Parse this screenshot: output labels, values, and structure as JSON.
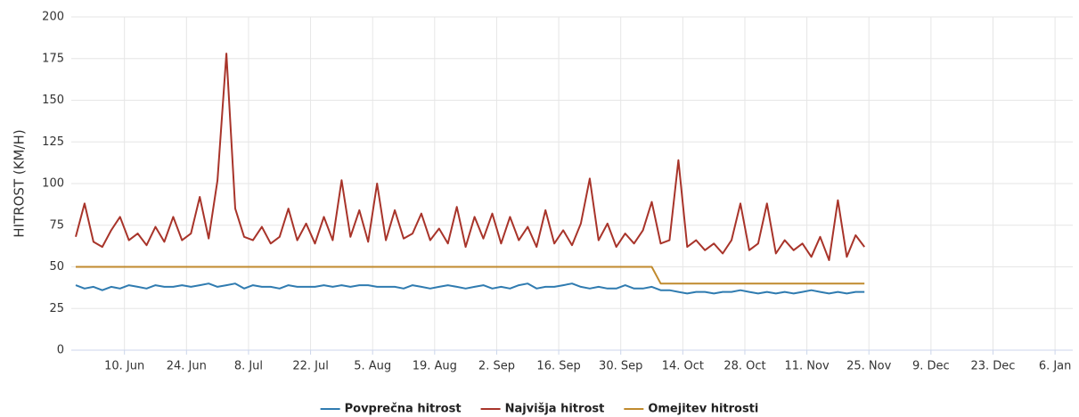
{
  "chart_data": {
    "type": "line",
    "y_label": "HITROST (KM/H)",
    "x": [
      "30. May",
      "1. Jun",
      "3. Jun",
      "5. Jun",
      "7. Jun",
      "9. Jun",
      "11. Jun",
      "13. Jun",
      "15. Jun",
      "17. Jun",
      "19. Jun",
      "21. Jun",
      "23. Jun",
      "25. Jun",
      "27. Jun",
      "29. Jun",
      "1. Jul",
      "3. Jul",
      "5. Jul",
      "7. Jul",
      "9. Jul",
      "11. Jul",
      "13. Jul",
      "15. Jul",
      "17. Jul",
      "19. Jul",
      "21. Jul",
      "23. Jul",
      "25. Jul",
      "27. Jul",
      "29. Jul",
      "31. Jul",
      "2. Aug",
      "4. Aug",
      "6. Aug",
      "8. Aug",
      "10. Aug",
      "12. Aug",
      "14. Aug",
      "16. Aug",
      "18. Aug",
      "20. Aug",
      "22. Aug",
      "24. Aug",
      "26. Aug",
      "28. Aug",
      "30. Aug",
      "1. Sep",
      "3. Sep",
      "5. Sep",
      "7. Sep",
      "9. Sep",
      "11. Sep",
      "13. Sep",
      "15. Sep",
      "17. Sep",
      "19. Sep",
      "21. Sep",
      "23. Sep",
      "25. Sep",
      "27. Sep",
      "29. Sep",
      "1. Oct",
      "3. Oct",
      "5. Oct",
      "7. Oct",
      "9. Oct",
      "11. Oct",
      "13. Oct",
      "15. Oct",
      "17. Oct",
      "19. Oct",
      "21. Oct",
      "23. Oct",
      "25. Oct",
      "27. Oct",
      "29. Oct",
      "31. Oct",
      "2. Nov",
      "4. Nov",
      "6. Nov",
      "8. Nov",
      "10. Nov",
      "12. Nov",
      "14. Nov",
      "16. Nov",
      "18. Nov",
      "20. Nov",
      "22. Nov",
      "24. Nov"
    ],
    "series": [
      {
        "name": "Povprečna hitrost",
        "color": "#2f7bb0",
        "values": [
          39,
          37,
          38,
          36,
          38,
          37,
          39,
          38,
          37,
          39,
          38,
          38,
          39,
          38,
          39,
          40,
          38,
          39,
          40,
          37,
          39,
          38,
          38,
          37,
          39,
          38,
          38,
          38,
          39,
          38,
          39,
          38,
          39,
          39,
          38,
          38,
          38,
          37,
          39,
          38,
          37,
          38,
          39,
          38,
          37,
          38,
          39,
          37,
          38,
          37,
          39,
          40,
          37,
          38,
          38,
          39,
          40,
          38,
          37,
          38,
          37,
          37,
          39,
          37,
          37,
          38,
          36,
          36,
          35,
          34,
          35,
          35,
          34,
          35,
          35,
          36,
          35,
          34,
          35,
          34,
          35,
          34,
          35,
          36,
          35,
          34,
          35,
          34,
          35,
          35
        ]
      },
      {
        "name": "Najvišja hitrost",
        "color": "#a8342a",
        "values": [
          68,
          88,
          65,
          62,
          72,
          80,
          66,
          70,
          63,
          74,
          65,
          80,
          66,
          70,
          92,
          67,
          102,
          178,
          85,
          68,
          66,
          74,
          64,
          68,
          85,
          66,
          76,
          64,
          80,
          66,
          102,
          68,
          84,
          65,
          100,
          66,
          84,
          67,
          70,
          82,
          66,
          73,
          64,
          86,
          62,
          80,
          67,
          82,
          64,
          80,
          66,
          74,
          62,
          84,
          64,
          72,
          63,
          76,
          103,
          66,
          76,
          62,
          70,
          64,
          72,
          89,
          64,
          66,
          114,
          62,
          66,
          60,
          64,
          58,
          66,
          88,
          60,
          64,
          88,
          58,
          66,
          60,
          64,
          56,
          68,
          54,
          90,
          56,
          69,
          62
        ]
      },
      {
        "name": "Omejitev hitrosti",
        "color": "#c08a2e",
        "values": [
          50,
          50,
          50,
          50,
          50,
          50,
          50,
          50,
          50,
          50,
          50,
          50,
          50,
          50,
          50,
          50,
          50,
          50,
          50,
          50,
          50,
          50,
          50,
          50,
          50,
          50,
          50,
          50,
          50,
          50,
          50,
          50,
          50,
          50,
          50,
          50,
          50,
          50,
          50,
          50,
          50,
          50,
          50,
          50,
          50,
          50,
          50,
          50,
          50,
          50,
          50,
          50,
          50,
          50,
          50,
          50,
          50,
          50,
          50,
          50,
          50,
          50,
          50,
          50,
          50,
          50,
          40,
          40,
          40,
          40,
          40,
          40,
          40,
          40,
          40,
          40,
          40,
          40,
          40,
          40,
          40,
          40,
          40,
          40,
          40,
          40,
          40,
          40,
          40,
          40
        ]
      }
    ],
    "xlim": [
      "29. May",
      "10. Jan"
    ],
    "xticks": [
      "10. Jun",
      "24. Jun",
      "8. Jul",
      "22. Jul",
      "5. Aug",
      "19. Aug",
      "2. Sep",
      "16. Sep",
      "30. Sep",
      "14. Oct",
      "28. Oct",
      "11. Nov",
      "25. Nov",
      "9. Dec",
      "23. Dec",
      "6. Jan"
    ],
    "ylim": [
      0,
      200
    ],
    "yticks": [
      0,
      25,
      50,
      75,
      100,
      125,
      150,
      175,
      200
    ],
    "grid": true,
    "legend": "bottom"
  }
}
